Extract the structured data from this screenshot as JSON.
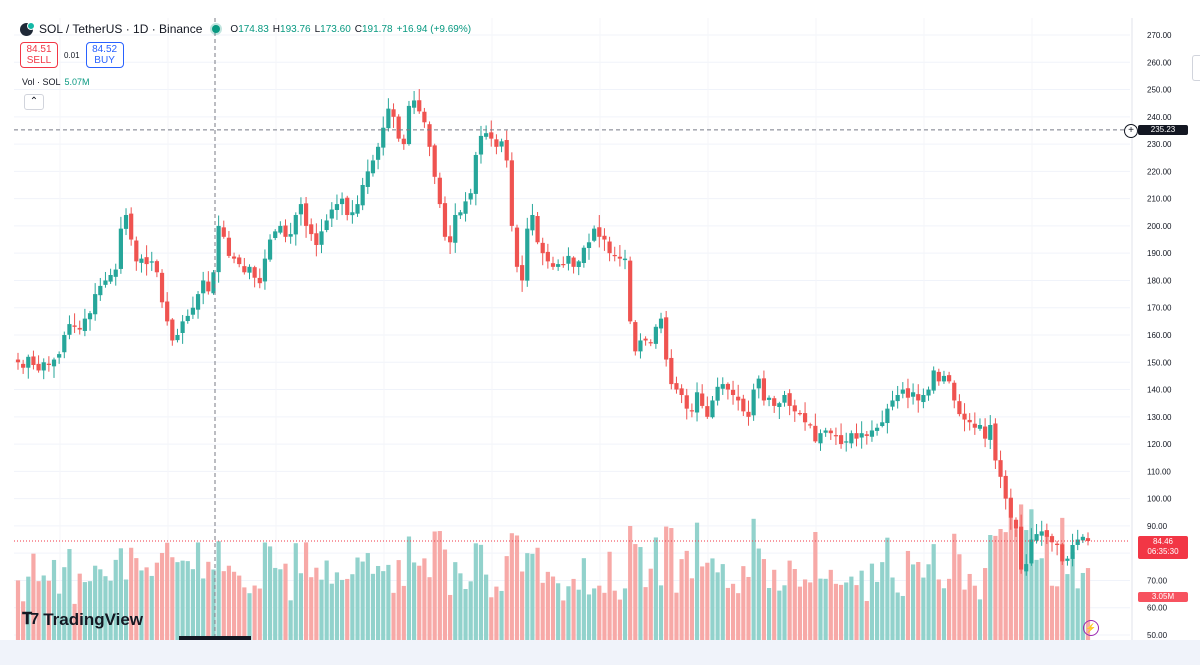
{
  "legend": {
    "symbol": "SOL / TetherUS · 1D · Binance",
    "o_label": "O",
    "o": "174.83",
    "h_label": "H",
    "h": "193.76",
    "l_label": "L",
    "l": "173.60",
    "c_label": "C",
    "c": "191.78",
    "change": "+16.94 (+9.69%)"
  },
  "trade": {
    "sell_price": "84.51",
    "sell_label": "SELL",
    "spread": "0.01",
    "buy_price": "84.52",
    "buy_label": "BUY"
  },
  "volume": {
    "label": "Vol · SOL",
    "value": "5.07M"
  },
  "brand": {
    "name": "TradingView"
  },
  "price_tags": {
    "crosshair": "235.23",
    "last_price": "84.46",
    "countdown": "06:35:30",
    "last_volume": "3.05M"
  },
  "colors": {
    "up": "#26a69a",
    "down": "#ef5350",
    "up_vol": "#92d2cc",
    "down_vol": "#f7a9a7",
    "accent": "#2962ff"
  },
  "icons": {
    "symbol": "solana-logo-icon",
    "live": "live-dot-icon",
    "add": "plus-circle-icon",
    "replay": "lightning-icon",
    "collapse": "chevron-up-icon"
  },
  "chart_data": {
    "type": "candlestick",
    "ylim": [
      45,
      275
    ],
    "yticks": [
      "270.00",
      "260.00",
      "250.00",
      "240.00",
      "230.00",
      "220.00",
      "210.00",
      "200.00",
      "190.00",
      "180.00",
      "170.00",
      "160.00",
      "150.00",
      "140.00",
      "130.00",
      "120.00",
      "110.00",
      "100.00",
      "90.00",
      "80.00",
      "70.00",
      "60.00",
      "50.00"
    ],
    "crosshair_price": 235.23,
    "last_price": 84.46,
    "grid": true,
    "close": [
      150,
      148,
      152,
      149,
      147,
      150,
      149,
      151,
      153,
      160,
      164,
      163,
      162,
      166,
      168,
      175,
      178,
      180,
      182,
      184,
      199,
      204,
      195,
      187,
      188,
      186,
      187,
      183,
      172,
      165,
      158,
      160,
      165,
      167,
      170,
      175,
      180,
      176,
      183,
      200,
      196,
      189,
      188,
      186,
      183,
      185,
      181,
      179,
      188,
      195,
      198,
      200,
      196,
      197,
      204,
      208,
      200,
      197,
      193,
      198,
      202,
      206,
      208,
      210,
      204,
      205,
      208,
      215,
      220,
      224,
      229,
      236,
      243,
      240,
      232,
      230,
      244,
      246,
      242,
      238,
      229,
      218,
      208,
      196,
      194,
      204,
      205,
      209,
      212,
      226,
      233,
      234,
      232,
      229,
      231,
      224,
      200,
      185,
      180,
      199,
      204,
      194,
      190,
      187,
      185,
      186,
      186,
      189,
      185,
      187,
      192,
      194,
      199,
      196,
      195,
      190,
      189,
      188,
      188,
      165,
      154,
      158,
      158,
      157,
      163,
      166,
      151,
      142,
      140,
      138,
      133,
      132,
      139,
      134,
      130,
      136,
      141,
      142,
      140,
      138,
      136,
      132,
      130,
      140,
      144,
      136,
      137,
      134,
      135,
      138,
      134,
      132,
      131,
      128,
      127,
      121,
      124,
      125,
      124,
      123,
      120,
      121,
      124,
      122,
      124,
      123,
      125,
      126,
      128,
      133,
      136,
      138,
      140,
      137,
      139,
      136,
      138,
      140,
      147,
      143,
      145,
      143,
      136,
      131,
      129,
      128,
      126,
      127,
      122,
      127,
      114,
      108,
      100,
      93,
      89,
      74,
      76,
      85,
      87,
      88,
      86,
      84,
      83,
      77,
      78,
      83,
      85,
      86,
      84.46
    ]
  }
}
